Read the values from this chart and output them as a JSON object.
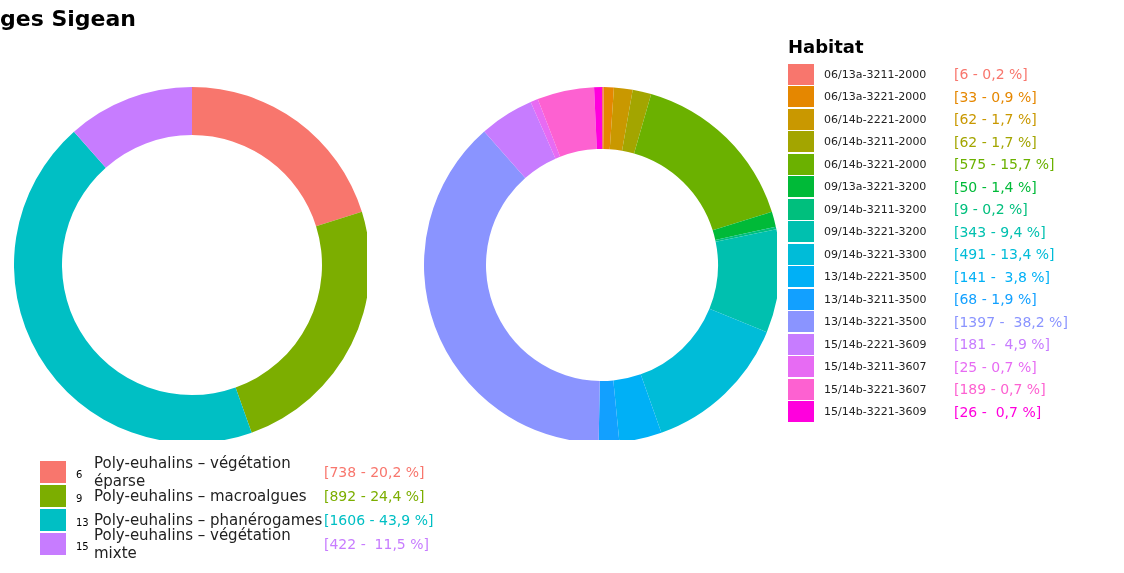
{
  "chart_data": [
    {
      "type": "donut",
      "title": "ges Sigean",
      "categories": [
        "6 Poly-euhalins – végétation éparse",
        "9 Poly-euhalins – macroalgues",
        "13 Poly-euhalins – phanérogames",
        "15 Poly-euhalins – végétation mixte"
      ],
      "values": [
        738,
        892,
        1606,
        422
      ],
      "colors": [
        "#f8766d",
        "#7cae00",
        "#00bfc4",
        "#c77cff"
      ],
      "value_labels": [
        "[738 - 20,2 %]",
        "[892 - 24,4 %]",
        "[1606 - 43,9 %]",
        "[422 -  11,5 %]"
      ],
      "legend": "bottom"
    },
    {
      "type": "donut",
      "legend_title": "Habitat",
      "categories": [
        "06/13a-3211-2000",
        "06/13a-3221-2000",
        "06/14b-2221-2000",
        "06/14b-3211-2000",
        "06/14b-3221-2000",
        "09/13a-3221-3200",
        "09/14b-3211-3200",
        "09/14b-3221-3200",
        "09/14b-3221-3300",
        "13/14b-2221-3500",
        "13/14b-3211-3500",
        "13/14b-3221-3500",
        "15/14b-2221-3609",
        "15/14b-3211-3607",
        "15/14b-3221-3607",
        "15/14b-3221-3609"
      ],
      "values": [
        6,
        33,
        62,
        62,
        575,
        50,
        9,
        343,
        491,
        141,
        68,
        1397,
        181,
        25,
        189,
        26
      ],
      "colors": [
        "#f8766d",
        "#e58700",
        "#c99800",
        "#a3a500",
        "#6bb100",
        "#00ba38",
        "#00bf7d",
        "#00c0af",
        "#00bcd8",
        "#00b0f6",
        "#12a0ff",
        "#8a94ff",
        "#c77cff",
        "#e76bf3",
        "#fd61d1",
        "#ff00dd"
      ],
      "value_labels": [
        "[6 - 0,2 %]",
        "[33 - 0,9 %]",
        "[62 - 1,7 %]",
        "[62 - 1,7 %]",
        "[575 - 15,7 %]",
        "[50 - 1,4 %]",
        "[9 - 0,2 %]",
        "[343 - 9,4 %]",
        "[491 - 13,4 %]",
        "[141 -  3,8 %]",
        "[68 - 1,9 %]",
        "[1397 -  38,2 %]",
        "[181 -  4,9 %]",
        "[25 - 0,7 %]",
        "[189 - 0,7 %]",
        "[26 -  0,7 %]"
      ],
      "legend": "right"
    }
  ]
}
